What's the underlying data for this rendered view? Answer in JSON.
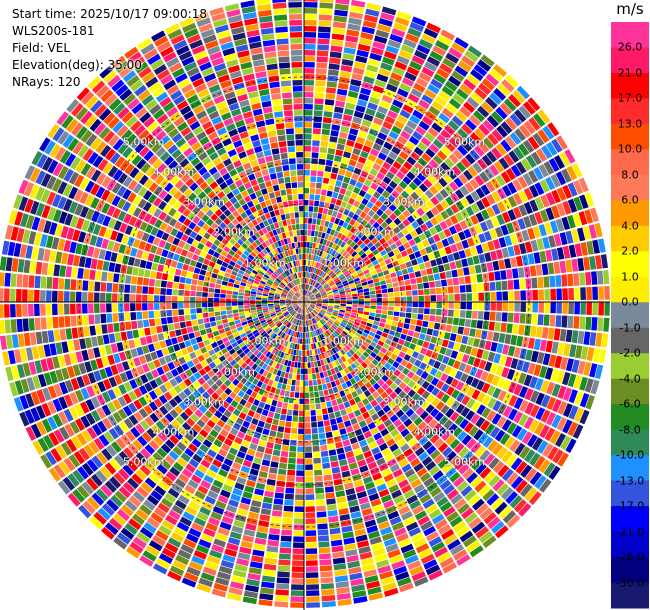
{
  "info": {
    "start_time": "Start time: 2025/10/17 09:00:18",
    "instrument": "WLS200s-181",
    "field": "Field: VEL",
    "elevation": "Elevation(deg): 35.00",
    "nrays": "NRays: 120"
  },
  "ring_labels": [
    "1.00km",
    "2.00km",
    "3.00km",
    "4.00km",
    "5.00km"
  ],
  "colorbar": {
    "unit": "m/s",
    "ticks": [
      "26.0",
      "21.0",
      "17.0",
      "13.0",
      "10.0",
      "8.0",
      "6.0",
      "4.0",
      "2.0",
      "1.0",
      "0.0",
      "-1.0",
      "-2.0",
      "-4.0",
      "-6.0",
      "-8.0",
      "-10.0",
      "-13.0",
      "-17.0",
      "-21.0",
      "-26.0",
      "-30.0"
    ],
    "colors": [
      "#ff3399",
      "#ff1a66",
      "#ff0000",
      "#ff2a2a",
      "#ff4d00",
      "#ff6a4d",
      "#ff7a5a",
      "#ff9900",
      "#ffcc00",
      "#ffff00",
      "#ffee00",
      "#7a8a9a",
      "#666666",
      "#9acd32",
      "#6b8e23",
      "#228b22",
      "#2e8b57",
      "#1e90ff",
      "#3355dd",
      "#0000ff",
      "#0000cc",
      "#000080",
      "#191970"
    ]
  }
}
